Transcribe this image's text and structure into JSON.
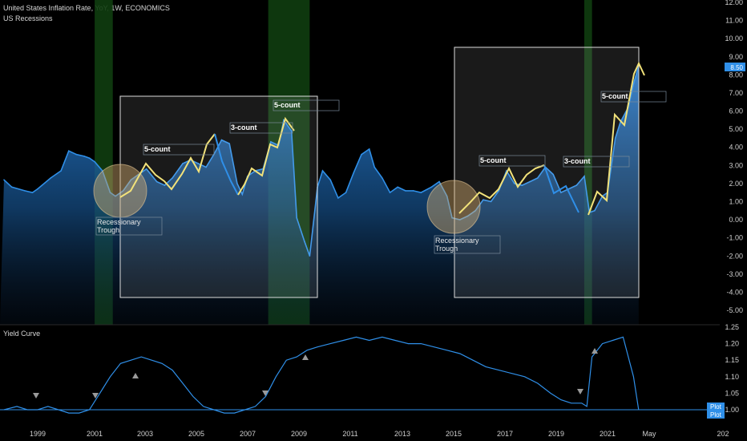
{
  "header": {
    "title": "United States Inflation Rate, YoY, 1W, ECONOMICS",
    "subtitle": "US Recessions",
    "pane2_title": "Yield Curve"
  },
  "colors": {
    "line": "#2f8fe8",
    "fill": "#1f5f9e",
    "recession": "#0f3d0f",
    "trace": "#f2e27a",
    "badge": "#2f8fe8"
  },
  "chart_data": [
    {
      "type": "area",
      "title": "United States Inflation Rate, YoY, 1W, ECONOMICS",
      "ylim": [
        -5.5,
        12.0
      ],
      "y_ticks": [
        "12.00",
        "11.00",
        "10.00",
        "9.00",
        "8.00",
        "7.00",
        "6.00",
        "5.00",
        "4.00",
        "3.00",
        "2.00",
        "1.00",
        "0.00",
        "-1.00",
        "-2.00",
        "-3.00",
        "-4.00",
        "-5.00"
      ],
      "last_value_label": "8.50",
      "x": [
        1997.7,
        1998.0,
        1998.5,
        1998.8,
        1999.0,
        1999.5,
        1999.9,
        2000.2,
        2000.5,
        2000.8,
        2001.0,
        2001.2,
        2001.5,
        2001.8,
        2002.0,
        2002.3,
        2002.6,
        2002.9,
        2003.2,
        2003.6,
        2003.9,
        2004.2,
        2004.6,
        2004.9,
        2005.2,
        2005.5,
        2005.8,
        2006.1,
        2006.4,
        2006.7,
        2006.9,
        2007.1,
        2007.4,
        2007.7,
        2008.0,
        2008.3,
        2008.5,
        2008.8,
        2009.0,
        2009.3,
        2009.5,
        2009.8,
        2010.0,
        2010.3,
        2010.6,
        2010.9,
        2011.2,
        2011.5,
        2011.8,
        2012.0,
        2012.3,
        2012.6,
        2012.9,
        2013.2,
        2013.5,
        2013.8,
        2014.2,
        2014.5,
        2014.8,
        2015.0,
        2015.3,
        2015.6,
        2015.9,
        2016.2,
        2016.5,
        2016.8,
        2017.1,
        2017.4,
        2017.7,
        2018.0,
        2018.3,
        2018.6,
        2018.9,
        2019.2,
        2019.5,
        2019.8,
        2020.1,
        2020.3,
        2020.5,
        2020.8,
        2021.0,
        2021.3,
        2021.5,
        2021.8,
        2022.0,
        2022.2
      ],
      "y": [
        2.2,
        1.8,
        1.6,
        1.5,
        1.7,
        2.3,
        2.7,
        3.8,
        3.6,
        3.5,
        3.4,
        3.2,
        2.7,
        1.5,
        1.3,
        1.6,
        2.2,
        2.5,
        2.8,
        2.1,
        1.9,
        2.3,
        3.1,
        3.3,
        3.1,
        2.9,
        3.6,
        4.4,
        4.2,
        2.0,
        1.4,
        2.4,
        2.7,
        2.8,
        4.3,
        4.1,
        5.5,
        4.9,
        0.1,
        -1.2,
        -2.0,
        1.8,
        2.7,
        2.2,
        1.2,
        1.5,
        2.6,
        3.6,
        3.9,
        2.9,
        2.3,
        1.5,
        1.8,
        1.6,
        1.6,
        1.5,
        1.8,
        2.1,
        1.3,
        0.1,
        0.0,
        0.2,
        0.5,
        1.1,
        1.0,
        1.6,
        2.7,
        2.0,
        1.9,
        2.1,
        2.3,
        2.9,
        2.5,
        1.5,
        1.7,
        1.9,
        2.4,
        0.4,
        0.5,
        1.3,
        1.5,
        4.5,
        5.4,
        6.2,
        7.5,
        8.5
      ],
      "recessions": [
        [
          2001.2,
          2001.9
        ],
        [
          2007.9,
          2009.5
        ],
        [
          2020.1,
          2020.4
        ]
      ],
      "x_ticks": [
        "1999",
        "2001",
        "2003",
        "2005",
        "2007",
        "2009",
        "2011",
        "2013",
        "2015",
        "2017",
        "2019",
        "2021",
        "May",
        "202"
      ],
      "annotations": [
        "5-count",
        "3-count",
        "5-count",
        "5-count",
        "3-count",
        "5-count",
        "Recessionary Trough",
        "Recessionary Trough"
      ]
    },
    {
      "type": "line",
      "title": "Yield Curve",
      "ylim": [
        0.97,
        1.25
      ],
      "y_ticks": [
        "1.25",
        "1.20",
        "1.15",
        "1.10",
        "1.05",
        "1.00"
      ],
      "badges": [
        "Plot",
        "Plot"
      ],
      "x": [
        1997.7,
        1998.2,
        1998.6,
        1999.0,
        1999.4,
        1999.8,
        2000.2,
        2000.6,
        2001.0,
        2001.4,
        2001.8,
        2002.2,
        2002.6,
        2003.0,
        2003.4,
        2003.8,
        2004.2,
        2004.6,
        2005.0,
        2005.4,
        2005.8,
        2006.2,
        2006.6,
        2007.0,
        2007.4,
        2007.8,
        2008.2,
        2008.6,
        2009.0,
        2009.4,
        2009.8,
        2010.3,
        2010.8,
        2011.3,
        2011.8,
        2012.3,
        2012.8,
        2013.3,
        2013.8,
        2014.3,
        2014.8,
        2015.3,
        2015.8,
        2016.3,
        2016.8,
        2017.3,
        2017.8,
        2018.3,
        2018.8,
        2019.2,
        2019.6,
        2020.0,
        2020.2,
        2020.4,
        2020.8,
        2021.2,
        2021.6,
        2022.0,
        2022.2
      ],
      "y": [
        1.0,
        1.01,
        1.0,
        1.0,
        1.01,
        1.0,
        0.99,
        0.99,
        1.0,
        1.05,
        1.1,
        1.14,
        1.15,
        1.16,
        1.15,
        1.14,
        1.12,
        1.08,
        1.04,
        1.01,
        1.0,
        0.99,
        0.99,
        1.0,
        1.01,
        1.04,
        1.1,
        1.15,
        1.16,
        1.18,
        1.19,
        1.2,
        1.21,
        1.22,
        1.21,
        1.22,
        1.21,
        1.2,
        1.2,
        1.19,
        1.18,
        1.17,
        1.15,
        1.13,
        1.12,
        1.11,
        1.1,
        1.08,
        1.05,
        1.03,
        1.02,
        1.02,
        1.01,
        1.16,
        1.2,
        1.21,
        1.22,
        1.1,
        1.0
      ]
    }
  ]
}
